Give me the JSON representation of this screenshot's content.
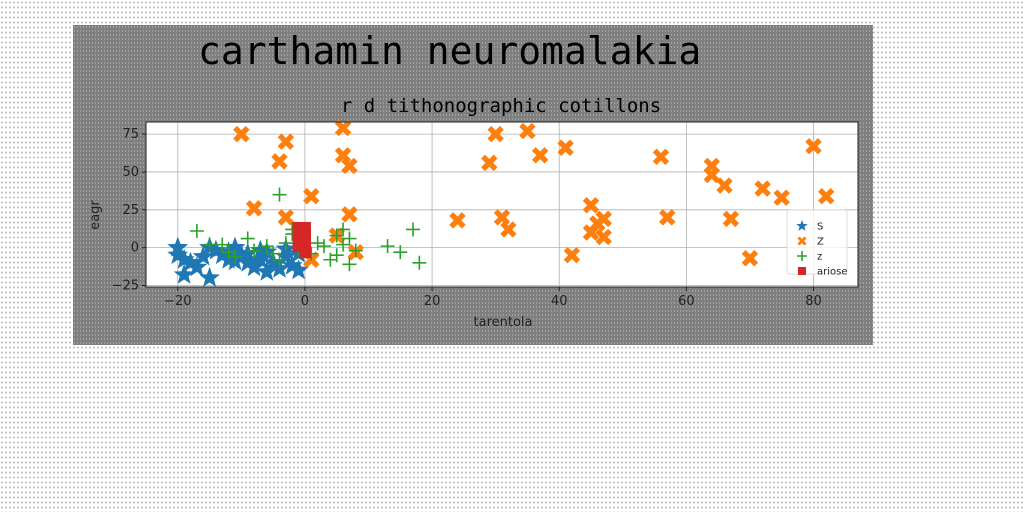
{
  "figure": {
    "suptitle": "carthamin neuromalakia"
  },
  "chart_data": {
    "type": "scatter",
    "title": "r d tithonographic cotillons",
    "xlabel": "tarentola",
    "ylabel": "eagr",
    "xlim": [
      -25,
      87
    ],
    "ylim": [
      -26,
      83
    ],
    "xticks": [
      -20,
      0,
      20,
      40,
      60,
      80
    ],
    "yticks": [
      -25,
      0,
      25,
      50,
      75
    ],
    "grid": true,
    "legend_position": "right",
    "series": [
      {
        "name": "S",
        "marker": "star",
        "color": "#1f77b4",
        "points": [
          [
            -20,
            -5
          ],
          [
            -19,
            -18
          ],
          [
            -19,
            -8
          ],
          [
            -18,
            -10
          ],
          [
            -17,
            -13
          ],
          [
            -15,
            0
          ],
          [
            -15,
            -20
          ],
          [
            -14,
            -2
          ],
          [
            -13,
            -5
          ],
          [
            -12,
            -8
          ],
          [
            -12,
            -3
          ],
          [
            -11,
            -9
          ],
          [
            -10,
            -5
          ],
          [
            -9,
            -4
          ],
          [
            -9,
            -10
          ],
          [
            -8,
            -13
          ],
          [
            -7,
            -8
          ],
          [
            -6,
            -16
          ],
          [
            -6,
            -3
          ],
          [
            -5,
            -10
          ],
          [
            -4,
            -14
          ],
          [
            -3,
            -6
          ],
          [
            -2,
            -12
          ],
          [
            -1,
            -15
          ],
          [
            -1,
            -4
          ],
          [
            -20,
            0
          ],
          [
            -16,
            -6
          ],
          [
            -11,
            0
          ],
          [
            -7,
            -2
          ],
          [
            -3,
            -1
          ]
        ]
      },
      {
        "name": "Z",
        "marker": "x",
        "color": "#ff7f0e",
        "points": [
          [
            -10,
            75
          ],
          [
            -8,
            26
          ],
          [
            -4,
            57
          ],
          [
            -3,
            70
          ],
          [
            -3,
            20
          ],
          [
            1,
            34
          ],
          [
            1,
            -8
          ],
          [
            5,
            8
          ],
          [
            6,
            79
          ],
          [
            6,
            61
          ],
          [
            7,
            22
          ],
          [
            7,
            54
          ],
          [
            8,
            -3
          ],
          [
            24,
            18
          ],
          [
            29,
            56
          ],
          [
            30,
            75
          ],
          [
            31,
            20
          ],
          [
            32,
            12
          ],
          [
            35,
            77
          ],
          [
            37,
            61
          ],
          [
            41,
            66
          ],
          [
            42,
            -5
          ],
          [
            45,
            28
          ],
          [
            45,
            10
          ],
          [
            46,
            16
          ],
          [
            47,
            7
          ],
          [
            47,
            19
          ],
          [
            56,
            60
          ],
          [
            57,
            20
          ],
          [
            64,
            54
          ],
          [
            64,
            48
          ],
          [
            66,
            41
          ],
          [
            67,
            19
          ],
          [
            70,
            -7
          ],
          [
            72,
            39
          ],
          [
            75,
            33
          ],
          [
            80,
            67
          ],
          [
            82,
            34
          ]
        ]
      },
      {
        "name": "z",
        "marker": "plus",
        "color": "#2ca02c",
        "points": [
          [
            -17,
            11
          ],
          [
            -15,
            2
          ],
          [
            -13,
            2
          ],
          [
            -12,
            -3
          ],
          [
            -11,
            -6
          ],
          [
            -9,
            6
          ],
          [
            -8,
            -2
          ],
          [
            -6,
            1
          ],
          [
            -5,
            -4
          ],
          [
            -4,
            -8
          ],
          [
            -3,
            3
          ],
          [
            -2,
            12
          ],
          [
            -2,
            9
          ],
          [
            -4,
            35
          ],
          [
            -1,
            -2
          ],
          [
            1,
            -4
          ],
          [
            2,
            3
          ],
          [
            3,
            1
          ],
          [
            4,
            -8
          ],
          [
            5,
            8
          ],
          [
            5,
            -5
          ],
          [
            6,
            2
          ],
          [
            6,
            12
          ],
          [
            7,
            6
          ],
          [
            7,
            -11
          ],
          [
            8,
            -2
          ],
          [
            13,
            1
          ],
          [
            15,
            -3
          ],
          [
            17,
            12
          ],
          [
            18,
            -10
          ]
        ]
      },
      {
        "name": "ariose",
        "marker": "square",
        "color": "#d62728",
        "points": [
          [
            -1,
            13
          ],
          [
            -1,
            9
          ],
          [
            -1,
            5
          ],
          [
            -1,
            1
          ],
          [
            0,
            13
          ],
          [
            0,
            9
          ],
          [
            0,
            5
          ],
          [
            0,
            1
          ],
          [
            0,
            -3
          ],
          [
            -0.5,
            11
          ]
        ]
      }
    ]
  }
}
